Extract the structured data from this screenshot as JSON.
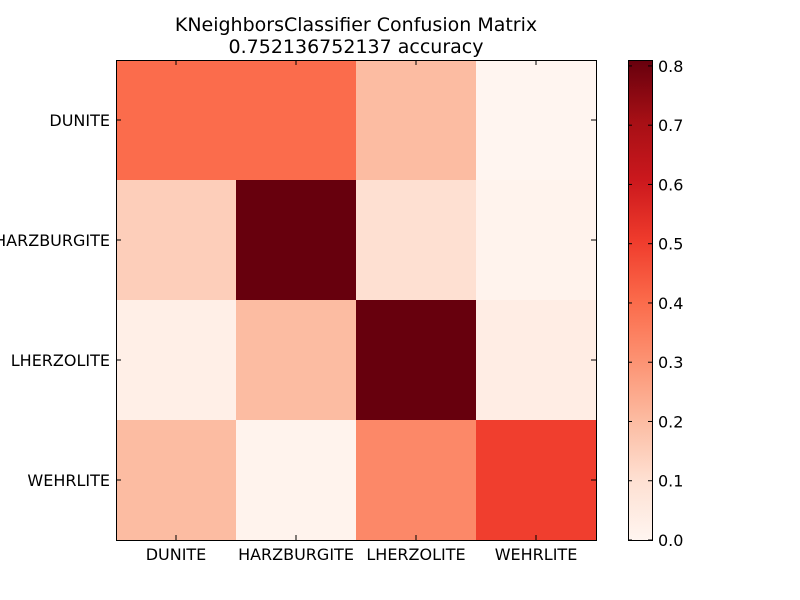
{
  "chart_data": {
    "type": "heatmap",
    "title": "KNeighborsClassifier Confusion Matrix",
    "subtitle": "0.752136752137 accuracy",
    "row_labels": [
      "DUNITE",
      "HARZBURGITE",
      "LHERZOLITE",
      "WEHRLITE"
    ],
    "col_labels": [
      "DUNITE",
      "HARZBURGITE",
      "LHERZOLITE",
      "WEHRLITE"
    ],
    "values": [
      [
        0.4,
        0.4,
        0.2,
        0.0
      ],
      [
        0.15,
        0.81,
        0.1,
        0.01
      ],
      [
        0.03,
        0.2,
        0.81,
        0.04
      ],
      [
        0.2,
        0.01,
        0.33,
        0.5
      ]
    ],
    "colormap": "Reds",
    "vmin": 0.0,
    "vmax": 0.81,
    "colorbar_ticks": [
      "0.0",
      "0.1",
      "0.2",
      "0.3",
      "0.4",
      "0.5",
      "0.6",
      "0.7",
      "0.8"
    ],
    "grid": false,
    "colors": {
      "low": "#fff5f0",
      "high": "#67000d",
      "frame": "#000000",
      "background": "#ffffff"
    }
  }
}
